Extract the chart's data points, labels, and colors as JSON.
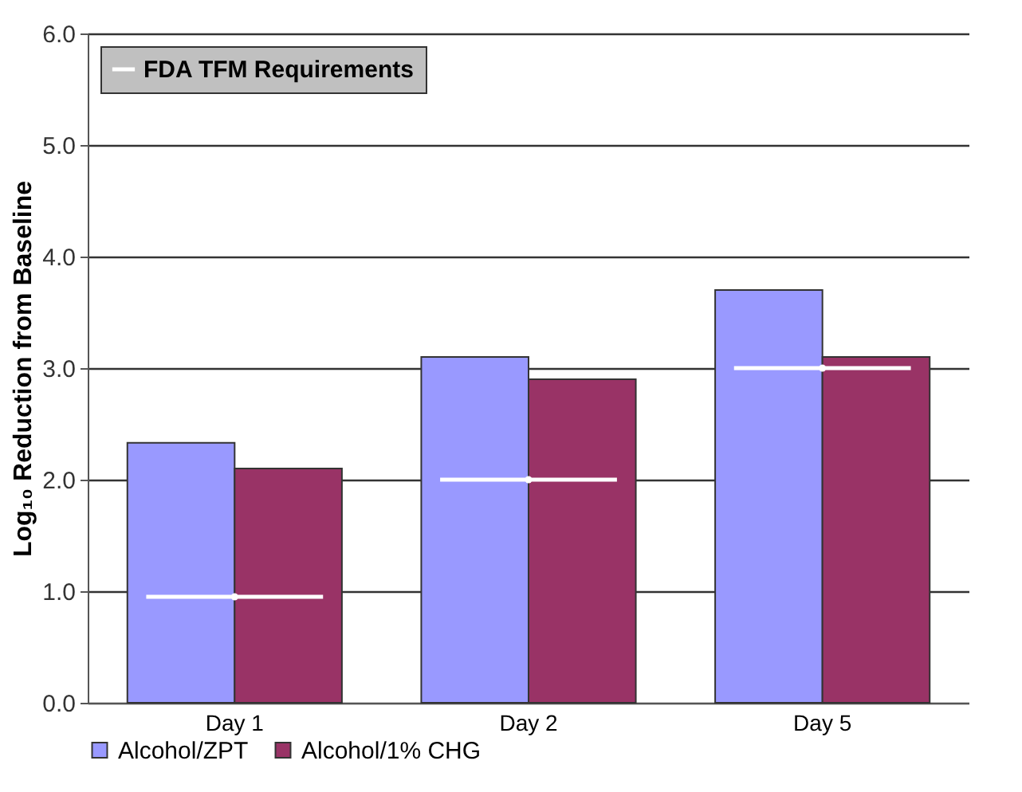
{
  "chart_data": {
    "type": "bar",
    "ylabel": "Log₁₀ Reduction from Baseline",
    "categories": [
      "Day 1",
      "Day 2",
      "Day 5"
    ],
    "series": [
      {
        "name": "Alcohol/ZPT",
        "color": "#9999ff",
        "values": [
          2.33,
          3.1,
          3.7
        ]
      },
      {
        "name": "Alcohol/1% CHG",
        "color": "#993366",
        "values": [
          2.1,
          2.9,
          3.1
        ]
      },
      {
        "name": "FDA TFM Requirements",
        "type": "scatter",
        "color": "#ffffff",
        "values": [
          0.95,
          2.0,
          3.0
        ]
      }
    ],
    "ylim": [
      0,
      6
    ],
    "yticks": [
      {
        "value": 0,
        "label": "0.0"
      },
      {
        "value": 1,
        "label": "1.0"
      },
      {
        "value": 2,
        "label": "2.0"
      },
      {
        "value": 3,
        "label": "3.0"
      },
      {
        "value": 4,
        "label": "4.0"
      },
      {
        "value": 5,
        "label": "5.0"
      },
      {
        "value": 6,
        "label": "6.0"
      }
    ],
    "grid": "y",
    "legend": "bottom"
  }
}
